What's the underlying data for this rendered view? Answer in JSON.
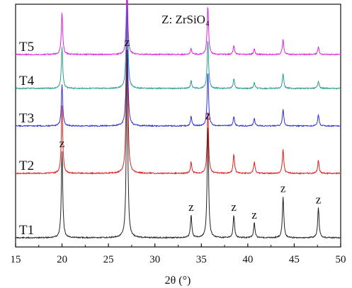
{
  "chart_data": {
    "type": "line",
    "title": "",
    "legend_note": "Z: ZrSiO₄",
    "xlabel": "2θ (°)",
    "ylabel": "",
    "xlim": [
      15,
      50
    ],
    "xticks": [
      "15",
      "20",
      "25",
      "30",
      "35",
      "40",
      "45",
      "50"
    ],
    "grid": false,
    "series": [
      {
        "name": "T1",
        "color": "#222222",
        "peaks": [
          {
            "x": 20.0,
            "h": 0.46
          },
          {
            "x": 27.0,
            "h": 1.0
          },
          {
            "x": 33.9,
            "h": 0.12
          },
          {
            "x": 35.7,
            "h": 0.61
          },
          {
            "x": 38.5,
            "h": 0.12
          },
          {
            "x": 40.7,
            "h": 0.08
          },
          {
            "x": 43.8,
            "h": 0.22
          },
          {
            "x": 47.6,
            "h": 0.16
          }
        ]
      },
      {
        "name": "T2",
        "color": "#e02020",
        "peaks": [
          {
            "x": 20.0,
            "h": 0.36
          },
          {
            "x": 27.0,
            "h": 0.96
          },
          {
            "x": 33.9,
            "h": 0.06
          },
          {
            "x": 35.7,
            "h": 0.34
          },
          {
            "x": 38.5,
            "h": 0.1
          },
          {
            "x": 40.7,
            "h": 0.06
          },
          {
            "x": 43.8,
            "h": 0.13
          },
          {
            "x": 47.6,
            "h": 0.07
          }
        ]
      },
      {
        "name": "T3",
        "color": "#3030dd",
        "peaks": [
          {
            "x": 20.0,
            "h": 0.22
          },
          {
            "x": 27.0,
            "h": 0.66
          },
          {
            "x": 33.9,
            "h": 0.05
          },
          {
            "x": 35.7,
            "h": 0.29
          },
          {
            "x": 38.5,
            "h": 0.05
          },
          {
            "x": 40.7,
            "h": 0.04
          },
          {
            "x": 43.8,
            "h": 0.09
          },
          {
            "x": 47.6,
            "h": 0.06
          }
        ]
      },
      {
        "name": "T4",
        "color": "#2a9d8f",
        "peaks": [
          {
            "x": 20.0,
            "h": 0.22
          },
          {
            "x": 27.0,
            "h": 0.62
          },
          {
            "x": 33.9,
            "h": 0.04
          },
          {
            "x": 35.7,
            "h": 0.26
          },
          {
            "x": 38.5,
            "h": 0.05
          },
          {
            "x": 40.7,
            "h": 0.03
          },
          {
            "x": 43.8,
            "h": 0.08
          },
          {
            "x": 47.6,
            "h": 0.04
          }
        ]
      },
      {
        "name": "T5",
        "color": "#e020e0",
        "peaks": [
          {
            "x": 20.0,
            "h": 0.22
          },
          {
            "x": 27.0,
            "h": 0.4
          },
          {
            "x": 33.9,
            "h": 0.03
          },
          {
            "x": 35.7,
            "h": 0.26
          },
          {
            "x": 38.5,
            "h": 0.05
          },
          {
            "x": 40.7,
            "h": 0.03
          },
          {
            "x": 43.8,
            "h": 0.08
          },
          {
            "x": 47.6,
            "h": 0.04
          }
        ]
      }
    ],
    "peak_labels": [
      {
        "x": 20.0,
        "text": "z"
      },
      {
        "x": 27.0,
        "text": "z"
      },
      {
        "x": 33.9,
        "text": "z"
      },
      {
        "x": 35.7,
        "text": "z"
      },
      {
        "x": 38.5,
        "text": "z"
      },
      {
        "x": 40.7,
        "text": "z"
      },
      {
        "x": 43.8,
        "text": "z"
      },
      {
        "x": 47.6,
        "text": "z"
      }
    ]
  }
}
